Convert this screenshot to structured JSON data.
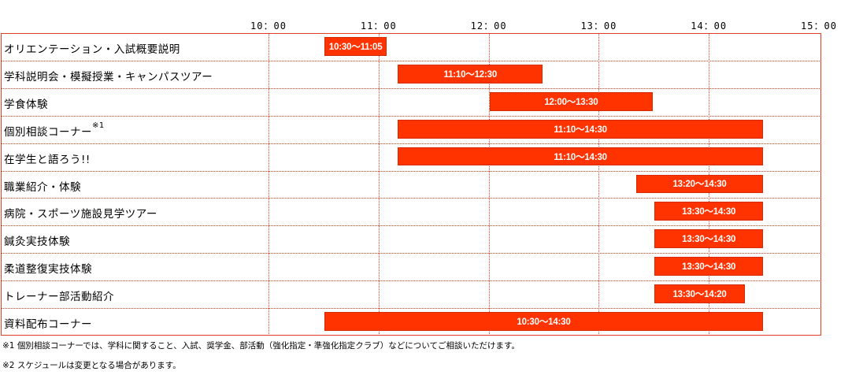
{
  "time_axis": [
    "10：00",
    "11：00",
    "12：00",
    "13：00",
    "14：00",
    "15：00"
  ],
  "rows": [
    {
      "label": "オリエンテーション・入試概要説明",
      "mark": "",
      "start": "10:30",
      "end": "11:05",
      "bar_text": "10:30〜11:05"
    },
    {
      "label": "学科説明会・模擬授業・キャンパスツアー",
      "mark": "",
      "start": "11:10",
      "end": "12:30",
      "bar_text": "11:10〜12:30"
    },
    {
      "label": "学食体験",
      "mark": "",
      "start": "12:00",
      "end": "13:30",
      "bar_text": "12:00〜13:30"
    },
    {
      "label": "個別相談コーナー",
      "mark": "※1",
      "start": "11:10",
      "end": "14:30",
      "bar_text": "11:10〜14:30"
    },
    {
      "label": "在学生と語ろう!!",
      "mark": "",
      "start": "11:10",
      "end": "14:30",
      "bar_text": "11:10〜14:30"
    },
    {
      "label": "職業紹介・体験",
      "mark": "",
      "start": "13:20",
      "end": "14:30",
      "bar_text": "13:20〜14:30"
    },
    {
      "label": "病院・スポーツ施設見学ツアー",
      "mark": "",
      "start": "13:30",
      "end": "14:30",
      "bar_text": "13:30〜14:30"
    },
    {
      "label": "鍼灸実技体験",
      "mark": "",
      "start": "13:30",
      "end": "14:30",
      "bar_text": "13:30〜14:30"
    },
    {
      "label": "柔道整復実技体験",
      "mark": "",
      "start": "13:30",
      "end": "14:30",
      "bar_text": "13:30〜14:30"
    },
    {
      "label": "トレーナー部活動紹介",
      "mark": "",
      "start": "13:30",
      "end": "14:20",
      "bar_text": "13:30〜14:20"
    },
    {
      "label": "資料配布コーナー",
      "mark": "",
      "start": "10:30",
      "end": "14:30",
      "bar_text": "10:30〜14:30"
    }
  ],
  "notes": [
    "※1 個別相談コーナーでは、学科に関すること、入試、奨学金、部活動（強化指定・準強化指定クラブ）などについてご相談いただけます。",
    "※2 スケジュールは変更となる場合があります。"
  ],
  "colors": {
    "bar": "#ff3300",
    "grid": "#e04020",
    "bar_text": "#ffffff"
  }
}
